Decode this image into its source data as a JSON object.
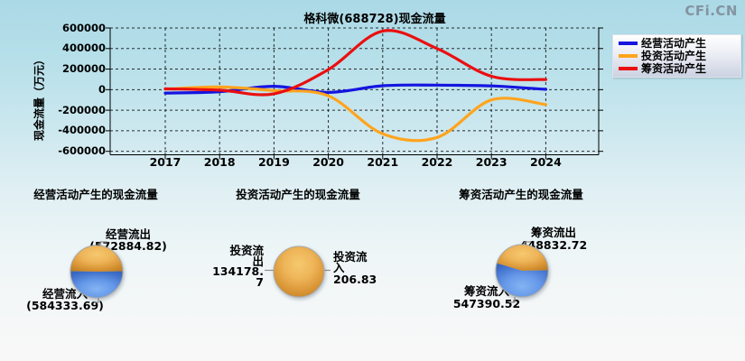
{
  "watermark": "CFi.CN",
  "line_chart": {
    "title": "格科微(688728)现金流量",
    "y_axis_title": "现金流量（万元）",
    "y_ticks": [
      "600000",
      "400000",
      "200000",
      "0",
      "-200000",
      "-400000",
      "-600000"
    ],
    "x_ticks": [
      "2017",
      "2018",
      "2019",
      "2020",
      "2021",
      "2022",
      "2023",
      "2024"
    ],
    "legend": [
      {
        "label": "经营活动产生",
        "color": "#1515e0"
      },
      {
        "label": "投资活动产生",
        "color": "#ffa41e"
      },
      {
        "label": "筹资活动产生",
        "color": "#ea0f0f"
      }
    ]
  },
  "chart_data": [
    {
      "type": "line",
      "title": "格科微(688728)现金流量",
      "xlabel": "",
      "ylabel": "现金流量（万元）",
      "x": [
        2017,
        2018,
        2019,
        2020,
        2021,
        2022,
        2023,
        2024
      ],
      "ylim": [
        -600000,
        600000
      ],
      "y_tick_step": 200000,
      "grid": true,
      "legend_position": "right",
      "series": [
        {
          "name": "经营活动产生",
          "color": "#1515e0",
          "values": [
            -33000,
            -20000,
            33000,
            -27000,
            38000,
            44000,
            36000,
            3000
          ]
        },
        {
          "name": "投资活动产生",
          "color": "#ffa41e",
          "values": [
            5000,
            26000,
            -9000,
            -60000,
            -430000,
            -465000,
            -100000,
            -145000
          ]
        },
        {
          "name": "筹资活动产生",
          "color": "#ea0f0f",
          "values": [
            8000,
            -5000,
            -40000,
            195000,
            570000,
            400000,
            130000,
            98000
          ]
        }
      ]
    },
    {
      "type": "pie",
      "title": "经营活动产生的现金流量",
      "labels": [
        "经营流出",
        "经营流入"
      ],
      "values": [
        572884.82,
        584333.69
      ],
      "colors": [
        "#e09a33",
        "#4a7fd6"
      ]
    },
    {
      "type": "pie",
      "title": "投资活动产生的现金流量",
      "labels": [
        "投资流出",
        "投资流入"
      ],
      "values": [
        134178.7,
        206.83
      ],
      "colors": [
        "#e09a33",
        "#4a7fd6"
      ]
    },
    {
      "type": "pie",
      "title": "筹资活动产生的现金流量",
      "labels": [
        "筹资流出",
        "筹资流入"
      ],
      "values": [
        448832.72,
        547390.52
      ],
      "colors": [
        "#e09a33",
        "#4a7fd6"
      ]
    }
  ],
  "pie_sections": [
    {
      "title": "经营活动产生的现金流量",
      "labels": [
        {
          "lines": [
            "经营流出",
            "(572884.82)"
          ]
        },
        {
          "lines": [
            "经营流入",
            "(584333.69)"
          ]
        }
      ]
    },
    {
      "title": "投资活动产生的现金流量",
      "labels": [
        {
          "lines": [
            "投资流",
            "出",
            "134178.",
            "7"
          ]
        },
        {
          "lines": [
            "投资流",
            "入",
            "206.83"
          ]
        }
      ]
    },
    {
      "title": "筹资活动产生的现金流量",
      "labels": [
        {
          "lines": [
            "筹资流出",
            "448832.72"
          ]
        },
        {
          "lines": [
            "筹资流入",
            "547390.52"
          ]
        }
      ]
    }
  ]
}
